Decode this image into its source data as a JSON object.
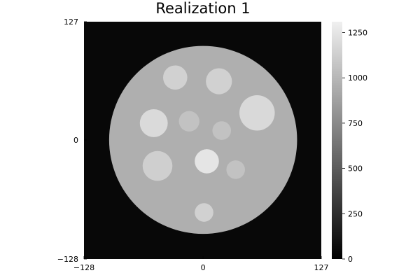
{
  "chart_data": {
    "type": "heatmap",
    "title": "Realization 1",
    "xlabel": "",
    "ylabel": "",
    "xlim": [
      -128,
      127
    ],
    "ylim": [
      -128,
      127
    ],
    "x_ticks": [
      {
        "value": -128,
        "label": "−128"
      },
      {
        "value": 0,
        "label": "0"
      },
      {
        "value": 127,
        "label": "127"
      }
    ],
    "y_ticks": [
      {
        "value": 127,
        "label": "127"
      },
      {
        "value": 0,
        "label": "0"
      },
      {
        "value": -128,
        "label": "−128"
      }
    ],
    "colorbar": {
      "colormap": "grays",
      "range": [
        0,
        1310
      ],
      "ticks": [
        {
          "value": 0,
          "label": "0"
        },
        {
          "value": 250,
          "label": "250"
        },
        {
          "value": 500,
          "label": "500"
        },
        {
          "value": 750,
          "label": "750"
        },
        {
          "value": 1000,
          "label": "1000"
        },
        {
          "value": 1250,
          "label": "1250"
        }
      ]
    },
    "background_value": 45,
    "phantom": {
      "center": [
        0,
        0
      ],
      "radius_x": 101,
      "radius_y": 101,
      "value": 955
    },
    "inclusions": [
      {
        "center": [
          -30,
          67
        ],
        "radius": 13,
        "value": 1140
      },
      {
        "center": [
          17,
          63
        ],
        "radius": 14,
        "value": 1140
      },
      {
        "center": [
          -53,
          18
        ],
        "radius": 15,
        "value": 1190
      },
      {
        "center": [
          -15,
          20
        ],
        "radius": 11,
        "value": 1060
      },
      {
        "center": [
          20,
          10
        ],
        "radius": 10,
        "value": 1060
      },
      {
        "center": [
          58,
          29
        ],
        "radius": 19,
        "value": 1185
      },
      {
        "center": [
          -49,
          -28
        ],
        "radius": 16,
        "value": 1130
      },
      {
        "center": [
          4,
          -23
        ],
        "radius": 13,
        "value": 1250
      },
      {
        "center": [
          35,
          -32
        ],
        "radius": 10,
        "value": 1060
      },
      {
        "center": [
          1,
          -78
        ],
        "radius": 10,
        "value": 1140
      }
    ]
  }
}
